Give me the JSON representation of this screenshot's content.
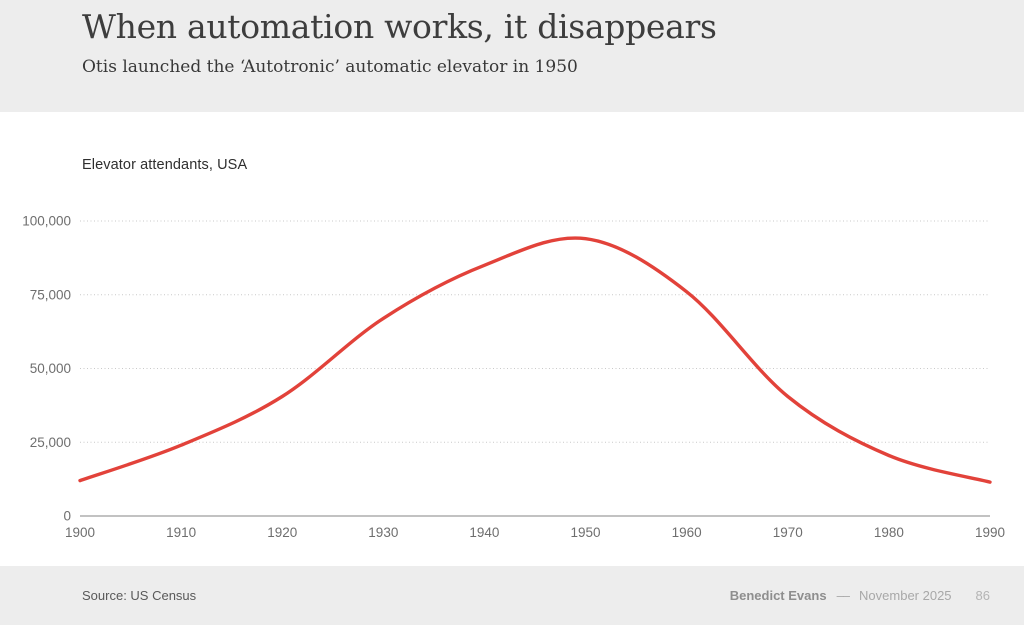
{
  "header": {
    "title": "When automation works, it disappears",
    "subtitle": "Otis launched the ‘Autotronic’ automatic elevator in 1950"
  },
  "chart_data": {
    "type": "line",
    "title": "Elevator attendants, USA",
    "x": [
      1900,
      1910,
      1920,
      1930,
      1940,
      1950,
      1960,
      1970,
      1980,
      1990
    ],
    "values": [
      12000,
      24000,
      40500,
      67000,
      85000,
      94000,
      76000,
      40500,
      20500,
      11500
    ],
    "x_tick_labels": [
      "1900",
      "1910",
      "1920",
      "1930",
      "1940",
      "1950",
      "1960",
      "1970",
      "1980",
      "1990"
    ],
    "y_ticks": [
      0,
      25000,
      50000,
      75000,
      100000
    ],
    "ylim": [
      0,
      100000
    ],
    "xlim": [
      1900,
      1990
    ],
    "xlabel": "",
    "ylabel": "",
    "legend": "none",
    "grid": "horizontal-dotted",
    "line_color": "#e2423a",
    "grid_color": "#c9c9c9",
    "axis_color": "#9e9e9e",
    "tick_color": "#6e6e6e"
  },
  "footer": {
    "source": "Source: US Census",
    "author": "Benedict Evans",
    "separator": "––",
    "date": "November 2025",
    "page": "86"
  }
}
